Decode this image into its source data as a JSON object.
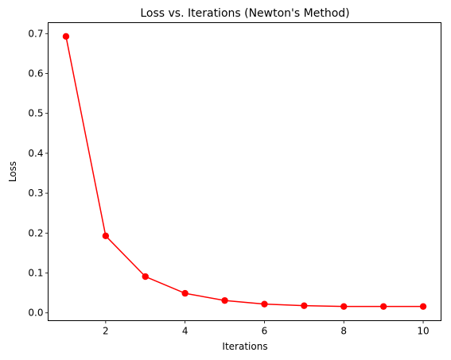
{
  "chart_data": {
    "type": "line",
    "title": "Loss vs. Iterations (Newton's Method)",
    "xlabel": "Iterations",
    "ylabel": "Loss",
    "x": [
      1,
      2,
      3,
      4,
      5,
      6,
      7,
      8,
      9,
      10
    ],
    "series": [
      {
        "values": [
          0.693,
          0.193,
          0.091,
          0.049,
          0.031,
          0.022,
          0.018,
          0.016,
          0.016,
          0.016
        ],
        "color": "#ff0000",
        "marker": "circle"
      }
    ],
    "xlim": [
      0.55,
      10.45
    ],
    "ylim": [
      -0.0195,
      0.7275
    ],
    "xticks": [
      2,
      4,
      6,
      8,
      10
    ],
    "xtick_labels": [
      "2",
      "4",
      "6",
      "8",
      "10"
    ],
    "yticks": [
      0.0,
      0.1,
      0.2,
      0.3,
      0.4,
      0.5,
      0.6,
      0.7
    ],
    "ytick_labels": [
      "0.0",
      "0.1",
      "0.2",
      "0.3",
      "0.4",
      "0.5",
      "0.6",
      "0.7"
    ],
    "grid": false,
    "legend": "none"
  }
}
